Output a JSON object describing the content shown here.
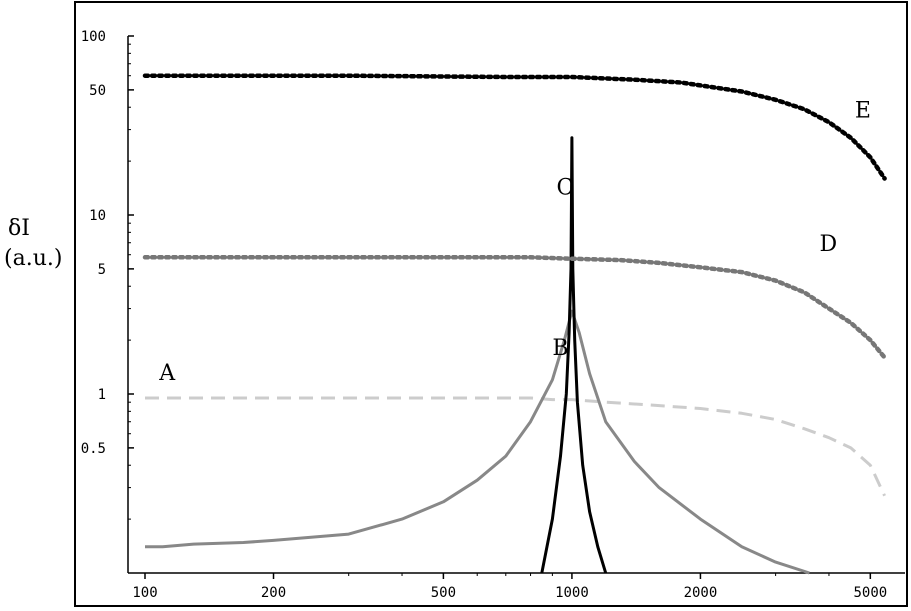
{
  "chart_data": {
    "type": "line",
    "title": "",
    "xlabel": "",
    "ylabel_line1": "δI",
    "ylabel_line2": "(a.u.)",
    "x_scale": "log",
    "y_scale": "log",
    "xlim": [
      100,
      5500
    ],
    "ylim": [
      0.1,
      100
    ],
    "x_tick_values": [
      100,
      200,
      500,
      1000,
      2000,
      5000
    ],
    "x_tick_labels": [
      "100",
      "200",
      "500",
      "1000",
      "2000",
      "5000"
    ],
    "y_tick_values": [
      100,
      50,
      10,
      5,
      1,
      0.5
    ],
    "y_tick_labels": [
      "100",
      "50",
      "10",
      "5",
      "1",
      "0.5"
    ],
    "grid": false,
    "series": [
      {
        "name": "A",
        "color": "#cccccc",
        "dash": "dashed",
        "x": [
          100,
          300,
          700,
          800,
          900,
          1000,
          1200,
          1500,
          2000,
          2500,
          3000,
          3500,
          4000,
          4500,
          5000,
          5400
        ],
        "y": [
          0.95,
          0.95,
          0.95,
          0.95,
          0.93,
          0.93,
          0.9,
          0.87,
          0.83,
          0.78,
          0.72,
          0.64,
          0.57,
          0.5,
          0.4,
          0.27
        ]
      },
      {
        "name": "B",
        "color": "#888888",
        "dash": "solid",
        "x": [
          100,
          110,
          130,
          170,
          200,
          300,
          400,
          500,
          600,
          700,
          800,
          900,
          960,
          1000,
          1040,
          1100,
          1200,
          1400,
          1600,
          2000,
          2500,
          3000,
          3600
        ],
        "y": [
          0.14,
          0.14,
          0.145,
          0.148,
          0.152,
          0.165,
          0.2,
          0.25,
          0.33,
          0.45,
          0.7,
          1.2,
          2.0,
          2.9,
          2.2,
          1.3,
          0.7,
          0.42,
          0.3,
          0.2,
          0.14,
          0.115,
          0.1
        ]
      },
      {
        "name": "C",
        "color": "#000000",
        "dash": "solid",
        "x": [
          850,
          900,
          940,
          970,
          985,
          995,
          1000,
          1005,
          1015,
          1030,
          1060,
          1100,
          1150,
          1200
        ],
        "y": [
          0.1,
          0.2,
          0.45,
          1.0,
          2.2,
          5.0,
          27,
          5.0,
          2.0,
          0.9,
          0.4,
          0.22,
          0.14,
          0.1
        ]
      },
      {
        "name": "D",
        "color": "#777777",
        "dash": "dotted",
        "x": [
          100,
          300,
          800,
          1000,
          1300,
          1600,
          2000,
          2500,
          3000,
          3500,
          4000,
          4500,
          5000,
          5400
        ],
        "y": [
          5.8,
          5.8,
          5.8,
          5.7,
          5.6,
          5.4,
          5.1,
          4.8,
          4.3,
          3.7,
          3.0,
          2.5,
          2.0,
          1.6
        ]
      },
      {
        "name": "E",
        "color": "#000000",
        "dash": "dotted",
        "x": [
          100,
          300,
          700,
          1000,
          1400,
          1800,
          2000,
          2500,
          3000,
          3500,
          4000,
          4500,
          5000,
          5400
        ],
        "y": [
          60,
          60,
          59,
          59,
          57,
          55,
          53,
          49,
          44,
          39,
          33,
          27,
          21,
          16
        ]
      }
    ],
    "annotations": [
      {
        "text": "A",
        "x": 108,
        "y": 1.2
      },
      {
        "text": "B",
        "x": 900,
        "y": 1.65
      },
      {
        "text": "C",
        "x": 920,
        "y": 13
      },
      {
        "text": "D",
        "x": 3800,
        "y": 6.3
      },
      {
        "text": "E",
        "x": 4600,
        "y": 35
      }
    ]
  }
}
